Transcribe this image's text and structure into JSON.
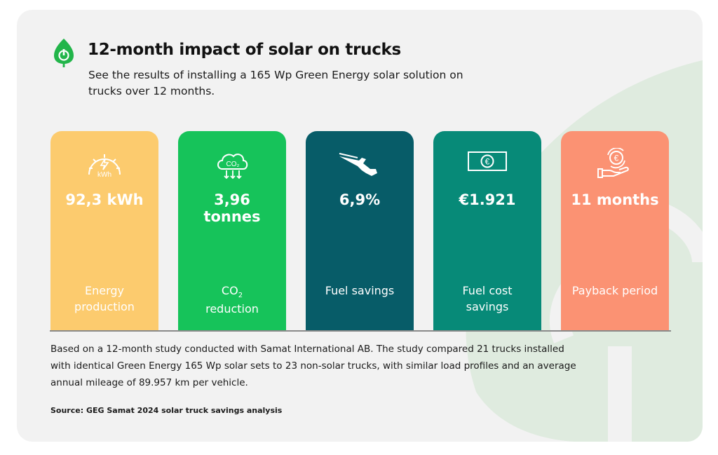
{
  "header": {
    "title": "12-month impact of solar on trucks",
    "subtitle": "See the results of installing a 165 Wp Green Energy solar solution on trucks over 12 months."
  },
  "colors": {
    "panel_bg": "#f2f2f2",
    "energy": "#fccb6e",
    "co2": "#16c35a",
    "fuel": "#075c68",
    "cost": "#078a78",
    "payback": "#fb9273",
    "logo": "#22b54a",
    "watermark": "#dfebdf"
  },
  "chart_data": {
    "type": "table",
    "title": "12-month impact of solar on trucks",
    "metrics": [
      {
        "key": "energy",
        "icon": "gauge-kwh-icon",
        "value": "92,3 kWh",
        "label": "Energy production",
        "color": "#fccb6e"
      },
      {
        "key": "co2",
        "icon": "co2-cloud-icon",
        "value": "3,96 tonnes",
        "label_main": "CO",
        "label_sub": "2",
        "label_rest": "reduction",
        "color": "#16c35a"
      },
      {
        "key": "fuel",
        "icon": "fuel-nozzle-icon",
        "value": "6,9%",
        "label": "Fuel savings",
        "color": "#075c68"
      },
      {
        "key": "cost",
        "icon": "euro-banknote-icon",
        "value": "€1.921",
        "label": "Fuel cost savings",
        "color": "#078a78"
      },
      {
        "key": "payback",
        "icon": "hand-euro-coin-icon",
        "value": "11 months",
        "label": "Payback period",
        "color": "#fb9273"
      }
    ]
  },
  "footer": {
    "note": "Based on a 12-month study conducted with Samat International AB. The study compared 21 trucks installed with identical Green Energy 165 Wp solar sets to 23 non-solar trucks, with similar load profiles and an average annual mileage of 89.957 km per vehicle.",
    "source": "Source: GEG Samat 2024 solar truck savings analysis"
  }
}
